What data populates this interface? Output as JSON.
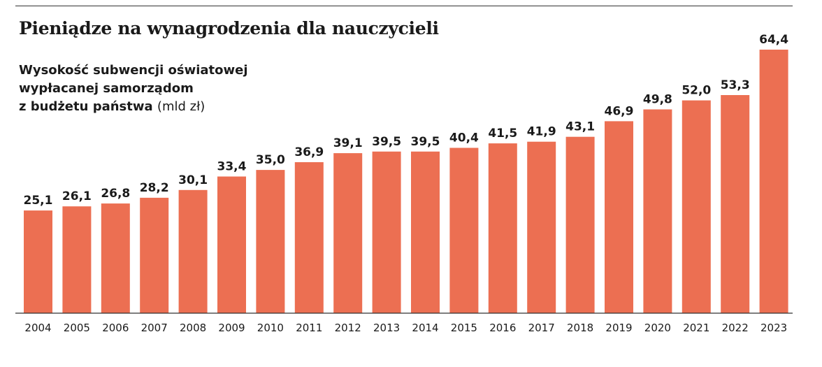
{
  "title": "Pieniądze na wynagrodzenia dla nauczycieli",
  "subtitle": {
    "line1": "Wysokość subwencji oświatowej",
    "line2": "wypłacanej samorządom",
    "line3": "z budżetu państwa",
    "unit": "(mld zł)"
  },
  "colors": {
    "bar": "#ec6f52"
  },
  "chart_data": {
    "type": "bar",
    "categories": [
      "2004",
      "2005",
      "2006",
      "2007",
      "2008",
      "2009",
      "2010",
      "2011",
      "2012",
      "2013",
      "2014",
      "2015",
      "2016",
      "2017",
      "2018",
      "2019",
      "2020",
      "2021",
      "2022",
      "2023"
    ],
    "values": [
      25.1,
      26.1,
      26.8,
      28.2,
      30.1,
      33.4,
      35.0,
      36.9,
      39.1,
      39.5,
      39.5,
      40.4,
      41.5,
      41.9,
      43.1,
      46.9,
      49.8,
      52.0,
      53.3,
      64.4
    ],
    "value_labels": [
      "25,1",
      "26,1",
      "26,8",
      "28,2",
      "30,1",
      "33,4",
      "35,0",
      "36,9",
      "39,1",
      "39,5",
      "39,5",
      "40,4",
      "41,5",
      "41,9",
      "43,1",
      "46,9",
      "49,8",
      "52,0",
      "53,3",
      "64,4"
    ],
    "ylim": [
      0,
      64.4
    ],
    "grid": false,
    "legend": "none"
  }
}
